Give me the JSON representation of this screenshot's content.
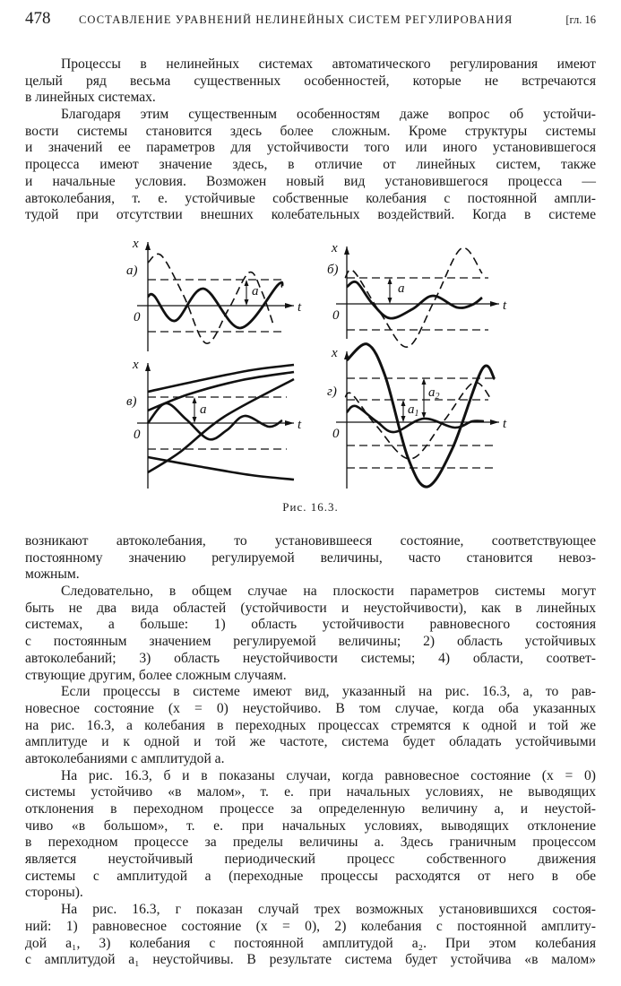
{
  "header": {
    "page_number": "478",
    "running_title": "СОСТАВЛЕНИЕ УРАВНЕНИЙ НЕЛИНЕЙНЫХ СИСТЕМ РЕГУЛИРОВАНИЯ",
    "chapter_ref": "[гл. 16"
  },
  "text_before_figure": [
    {
      "lines": [
        "Процессы в нелинейных системах автоматического регулирования имеют",
        "целый ряд весьма существенных особенностей, которые не встречаются",
        "в линейных системах."
      ]
    },
    {
      "lines": [
        "Благодаря этим существенным особенностям даже вопрос об устойчи-",
        "вости системы становится здесь более сложным. Кроме структуры системы",
        "и значений ее параметров для устойчивости того или иного установившегося",
        "процесса имеют значение здесь, в отличие от линейных систем, также",
        "и начальные условия. Возможен новый вид установившегося процесса —",
        "автоколебания, т. е. устойчивые собственные колебания с постоянной ампли-",
        "тудой при отсутствии внешних колебательных воздействий. Когда в системе"
      ],
      "continues": true
    }
  ],
  "figure": {
    "caption": "Рис. 16.3.",
    "panels": [
      {
        "label": "а)",
        "x_axis": "t",
        "y_axis": "x",
        "origin": "0",
        "amplitudes": [
          "a"
        ]
      },
      {
        "label": "б)",
        "x_axis": "t",
        "y_axis": "x",
        "origin": "0",
        "amplitudes": [
          "a"
        ]
      },
      {
        "label": "в)",
        "x_axis": "t",
        "y_axis": "x",
        "origin": "0",
        "amplitudes": [
          "a"
        ]
      },
      {
        "label": "г)",
        "x_axis": "t",
        "y_axis": "x",
        "origin": "0",
        "amplitudes": [
          "a1",
          "a2"
        ]
      }
    ]
  },
  "text_after_figure": [
    {
      "lines": [
        "возникают автоколебания, то установившееся состояние, соответствующее",
        "постоянному значению регулируемой величины, часто становится невоз-",
        "можным."
      ],
      "continued": true
    },
    {
      "lines": [
        "Следовательно, в общем случае на плоскости параметров системы могут",
        "быть не два вида областей (устойчивости и неустойчивости), как в линейных",
        "системах, а больше: 1) область устойчивости равновесного состояния",
        "с постоянным значением регулируемой величины; 2) область устойчивых",
        "автоколебаний; 3) область неустойчивости системы; 4) области, соответ-",
        "ствующие другим, более сложным случаям."
      ]
    },
    {
      "lines": [
        "Если процессы в системе имеют вид, указанный на рис. 16.3, а, то рав-",
        "новесное состояние (x = 0) неустойчиво. В том случае, когда оба указанных",
        "на рис. 16.3, а колебания в переходных процессах стремятся к одной и той же",
        "амплитуде и к одной и той же частоте, система будет обладать устойчивыми",
        "автоколебаниями с амплитудой а."
      ]
    },
    {
      "lines": [
        "На рис. 16.3, б и в показаны случаи, когда равновесное состояние (x = 0)",
        "системы устойчиво «в малом», т. е. при начальных условиях, не выводящих",
        "отклонения в переходном процессе за определенную величину а, и неустой-",
        "чиво «в большом», т. е. при начальных условиях, выводящих отклонение",
        "в переходном процессе за пределы величины а. Здесь граничным процессом",
        "является неустойчивый периодический процесс собственного движения",
        "системы с амплитудой а (переходные процессы расходятся от него в обе",
        "стороны)."
      ]
    },
    {
      "lines": [
        "На рис. 16.3, г показан случай трех возможных установившихся состоя-",
        "ний: 1) равновесное состояние (x = 0), 2) колебания с постоянной амплиту-",
        "дой a₁, 3) колебания с постоянной амплитудой a₂. При этом колебания",
        "с амплитудой a₁ неустойчивы. В результате система будет устойчива «в малом»"
      ],
      "continues": true
    }
  ]
}
